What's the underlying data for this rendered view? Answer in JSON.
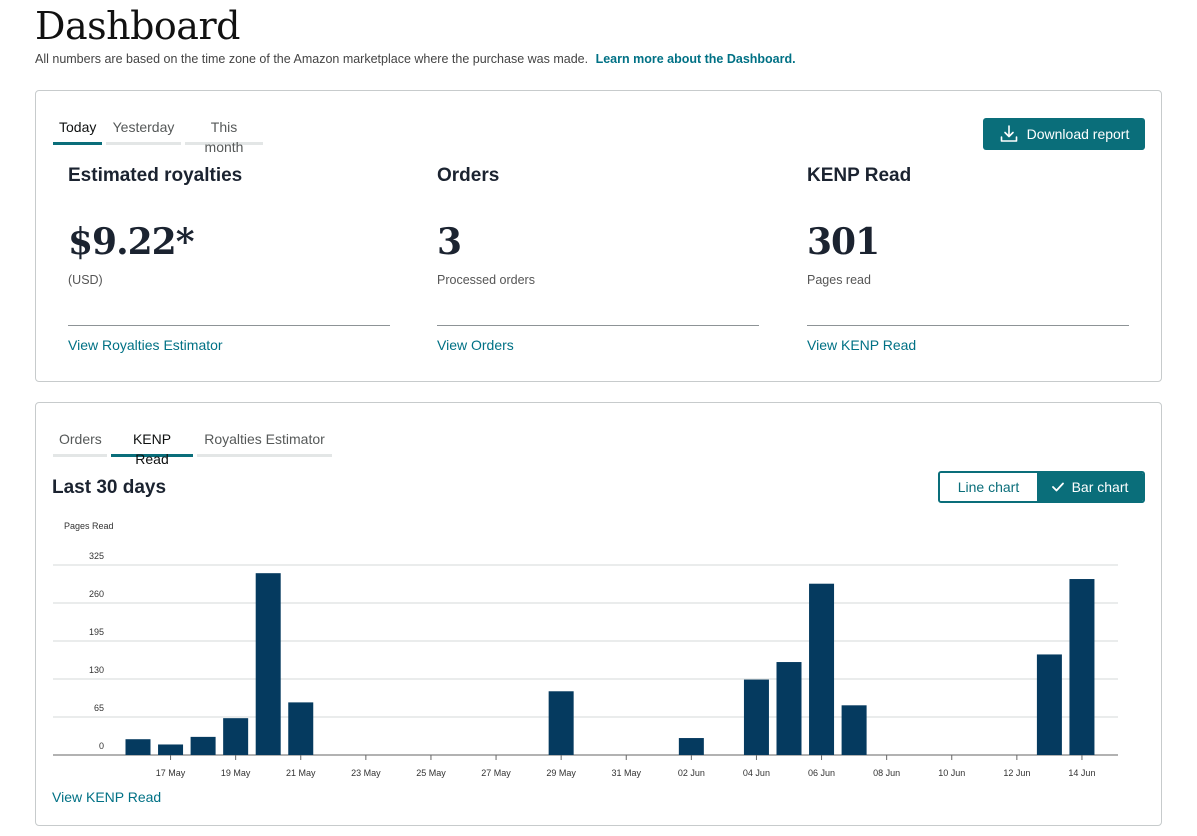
{
  "header": {
    "title": "Dashboard",
    "subtitle": "All numbers are based on the time zone of the Amazon marketplace where the purchase was made.",
    "learn_more": "Learn more about the Dashboard."
  },
  "summary": {
    "tabs": [
      {
        "label": "Today",
        "active": true
      },
      {
        "label": "Yesterday",
        "active": false
      },
      {
        "label": "This month",
        "active": false
      }
    ],
    "download_label": "Download report",
    "metrics": [
      {
        "title": "Estimated royalties",
        "value": "$9.22*",
        "sub": "(USD)",
        "link": "View Royalties Estimator"
      },
      {
        "title": "Orders",
        "value": "3",
        "sub": "Processed orders",
        "link": "View Orders"
      },
      {
        "title": "KENP Read",
        "value": "301",
        "sub": "Pages read",
        "link": "View KENP Read"
      }
    ]
  },
  "history": {
    "tabs": [
      {
        "label": "Orders",
        "active": false
      },
      {
        "label": "KENP Read",
        "active": true
      },
      {
        "label": "Royalties Estimator",
        "active": false
      }
    ],
    "heading": "Last 30 days",
    "toggle": {
      "line_label": "Line chart",
      "bar_label": "Bar chart",
      "selected": "bar"
    },
    "link": "View KENP Read"
  },
  "colors": {
    "accent": "#0a6e7a",
    "bar": "#053a5f",
    "link": "#007185"
  },
  "chart_data": {
    "type": "bar",
    "ylabel": "Pages Read",
    "ylim": [
      0,
      325
    ],
    "yticks": [
      0,
      65,
      130,
      195,
      260,
      325
    ],
    "x": [
      "16 May",
      "17 May",
      "18 May",
      "19 May",
      "20 May",
      "21 May",
      "22 May",
      "23 May",
      "24 May",
      "25 May",
      "26 May",
      "27 May",
      "28 May",
      "29 May",
      "30 May",
      "31 May",
      "01 Jun",
      "02 Jun",
      "03 Jun",
      "04 Jun",
      "05 Jun",
      "06 Jun",
      "07 Jun",
      "08 Jun",
      "09 Jun",
      "10 Jun",
      "11 Jun",
      "12 Jun",
      "13 Jun",
      "14 Jun"
    ],
    "xtick_labels": [
      "17 May",
      "19 May",
      "21 May",
      "23 May",
      "25 May",
      "27 May",
      "29 May",
      "31 May",
      "02 Jun",
      "04 Jun",
      "06 Jun",
      "08 Jun",
      "10 Jun",
      "12 Jun",
      "14 Jun"
    ],
    "values": [
      27,
      18,
      31,
      63,
      311,
      90,
      0,
      0,
      0,
      0,
      0,
      0,
      0,
      109,
      0,
      0,
      0,
      29,
      0,
      129,
      159,
      293,
      85,
      0,
      0,
      0,
      0,
      0,
      172,
      301
    ],
    "grid": true,
    "legend": "none"
  }
}
